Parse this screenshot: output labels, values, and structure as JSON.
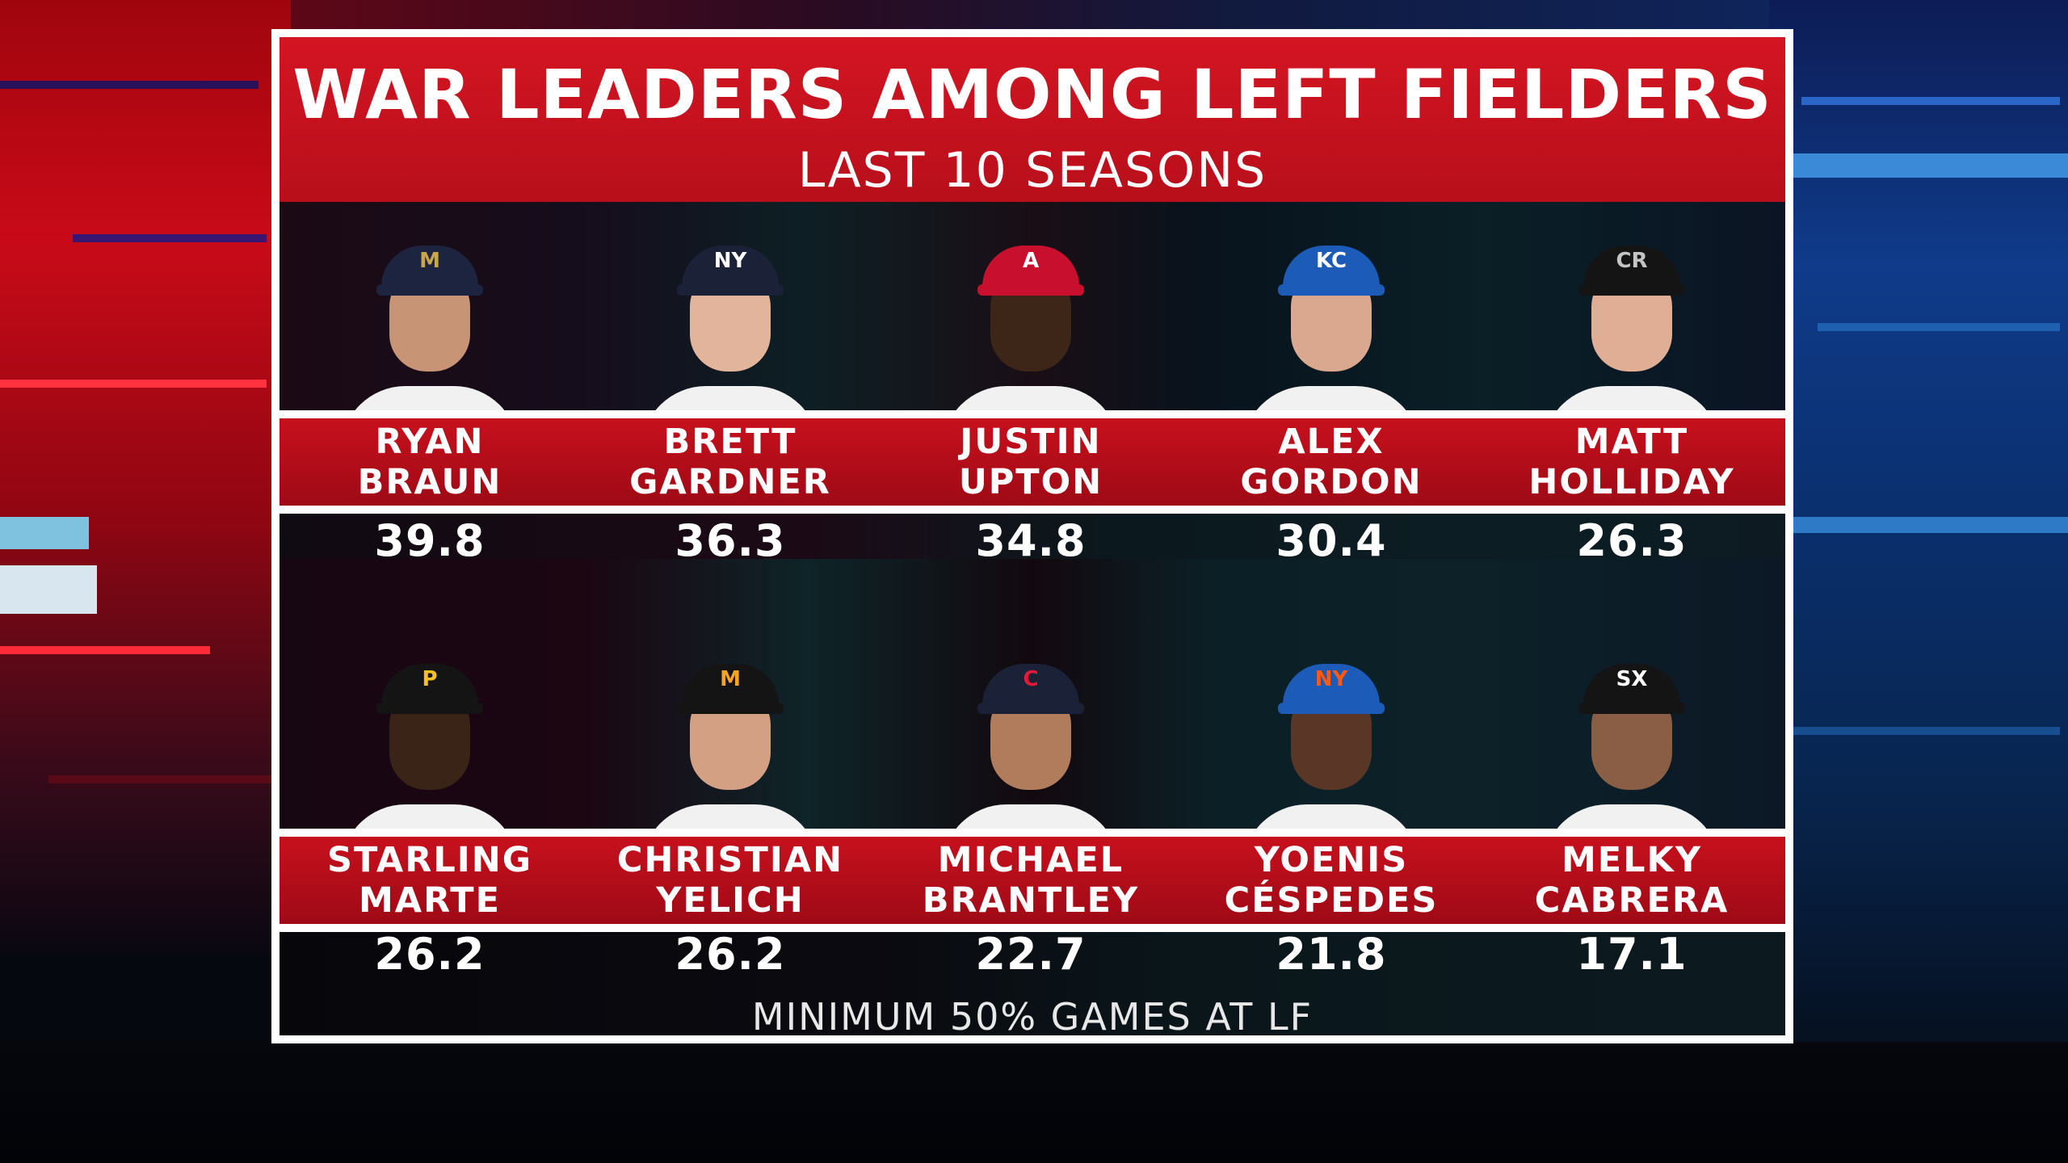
{
  "graphic": {
    "title": "WAR LEADERS AMONG LEFT FIELDERS",
    "subtitle": "LAST 10 SEASONS",
    "footnote": "MINIMUM 50% GAMES AT LF"
  },
  "row1": [
    {
      "first": "RYAN",
      "last": "BRAUN",
      "war": "39.8",
      "team_logo": "M",
      "cap_color": "#1c2440",
      "logo_color": "#c9a64a",
      "skin": "#c79476"
    },
    {
      "first": "BRETT",
      "last": "GARDNER",
      "war": "36.3",
      "team_logo": "NY",
      "cap_color": "#1b2238",
      "logo_color": "#ffffff",
      "skin": "#e2b49c"
    },
    {
      "first": "JUSTIN",
      "last": "UPTON",
      "war": "34.8",
      "team_logo": "A",
      "cap_color": "#c8102e",
      "logo_color": "#ffffff",
      "skin": "#3d2518"
    },
    {
      "first": "ALEX",
      "last": "GORDON",
      "war": "30.4",
      "team_logo": "KC",
      "cap_color": "#1d5bb8",
      "logo_color": "#ffffff",
      "skin": "#d9a88e"
    },
    {
      "first": "MATT",
      "last": "HOLLIDAY",
      "war": "26.3",
      "team_logo": "CR",
      "cap_color": "#141414",
      "logo_color": "#c4c4c4",
      "skin": "#e0ae94"
    }
  ],
  "row2": [
    {
      "first": "STARLING",
      "last": "MARTE",
      "war": "26.2",
      "team_logo": "P",
      "cap_color": "#141414",
      "logo_color": "#f4c21f",
      "skin": "#3a2418"
    },
    {
      "first": "CHRISTIAN",
      "last": "YELICH",
      "war": "26.2",
      "team_logo": "M",
      "cap_color": "#141414",
      "logo_color": "#f5a523",
      "skin": "#d3a083"
    },
    {
      "first": "MICHAEL",
      "last": "BRANTLEY",
      "war": "22.7",
      "team_logo": "C",
      "cap_color": "#1b2238",
      "logo_color": "#e31937",
      "skin": "#b07c5c"
    },
    {
      "first": "YOENIS",
      "last": "CÉSPEDES",
      "war": "21.8",
      "team_logo": "NY",
      "cap_color": "#1d5bb8",
      "logo_color": "#ff5910",
      "skin": "#5a3626"
    },
    {
      "first": "MELKY",
      "last": "CABRERA",
      "war": "17.1",
      "team_logo": "SX",
      "cap_color": "#141414",
      "logo_color": "#ffffff",
      "skin": "#8a5e44"
    }
  ]
}
